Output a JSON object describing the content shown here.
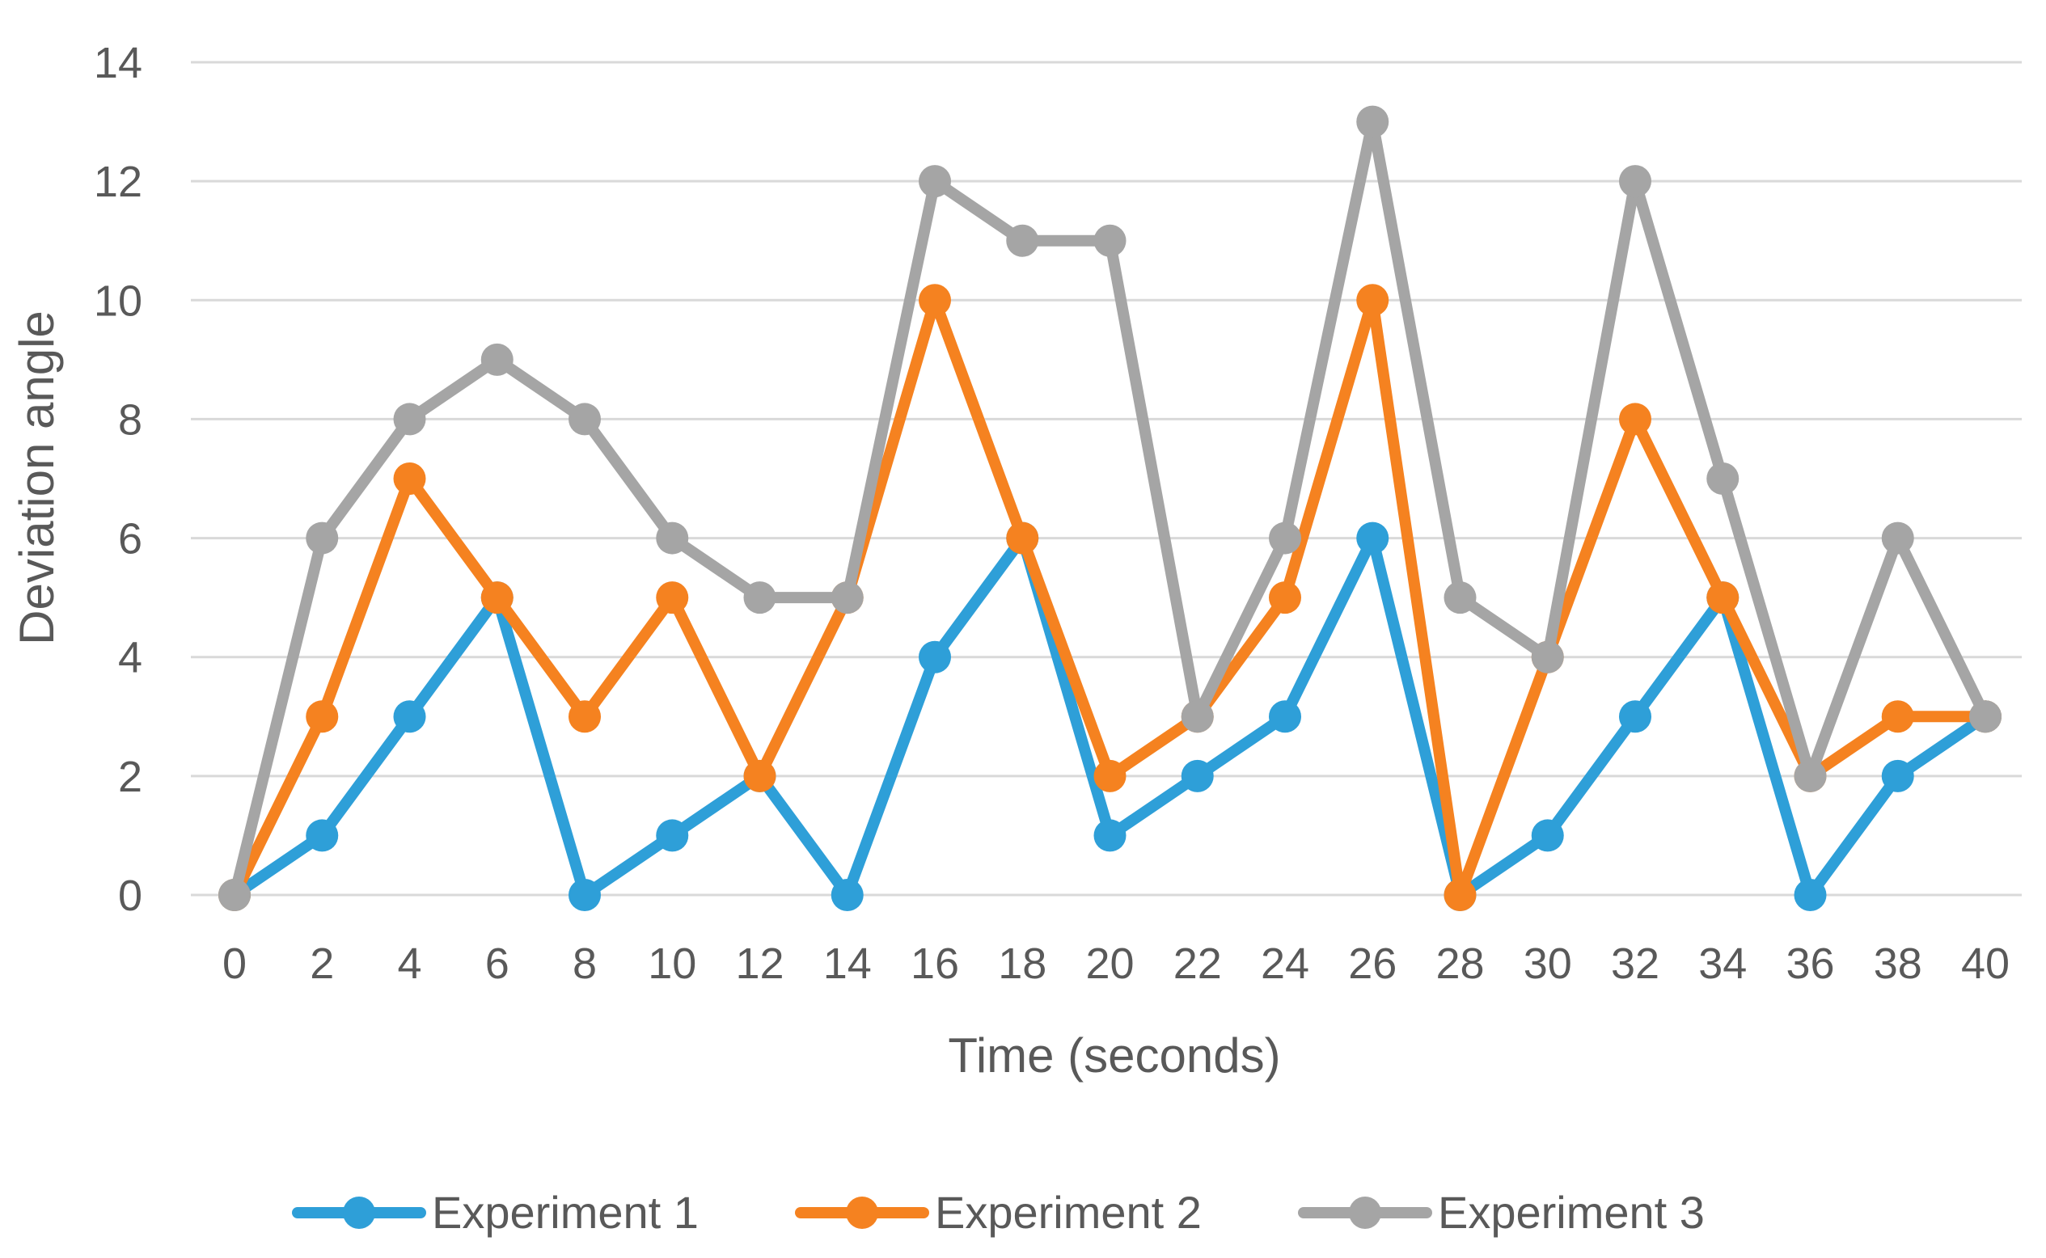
{
  "chart_data": {
    "type": "line",
    "title": "",
    "xlabel": "Time (seconds)",
    "ylabel": "Deviation angle",
    "x": [
      0,
      2,
      4,
      6,
      8,
      10,
      12,
      14,
      16,
      18,
      20,
      22,
      24,
      26,
      28,
      30,
      32,
      34,
      36,
      38,
      40
    ],
    "xlim": [
      0,
      40
    ],
    "ylim": [
      0,
      14
    ],
    "yticks": [
      0,
      2,
      4,
      6,
      8,
      10,
      12,
      14
    ],
    "grid": true,
    "legend_position": "bottom",
    "series": [
      {
        "name": "Experiment 1",
        "color": "#2e9fd8",
        "values": [
          0,
          1,
          3,
          5,
          0,
          1,
          2,
          0,
          4,
          6,
          1,
          2,
          3,
          6,
          0,
          1,
          3,
          5,
          0,
          2,
          3
        ]
      },
      {
        "name": "Experiment 2",
        "color": "#f58220",
        "values": [
          0,
          3,
          7,
          5,
          3,
          5,
          2,
          5,
          10,
          6,
          2,
          3,
          5,
          10,
          0,
          4,
          8,
          5,
          2,
          3,
          3
        ]
      },
      {
        "name": "Experiment 3",
        "color": "#a5a5a5",
        "values": [
          0,
          6,
          8,
          9,
          8,
          6,
          5,
          5,
          12,
          11,
          11,
          3,
          6,
          13,
          5,
          4,
          12,
          7,
          2,
          6,
          3
        ]
      }
    ]
  }
}
